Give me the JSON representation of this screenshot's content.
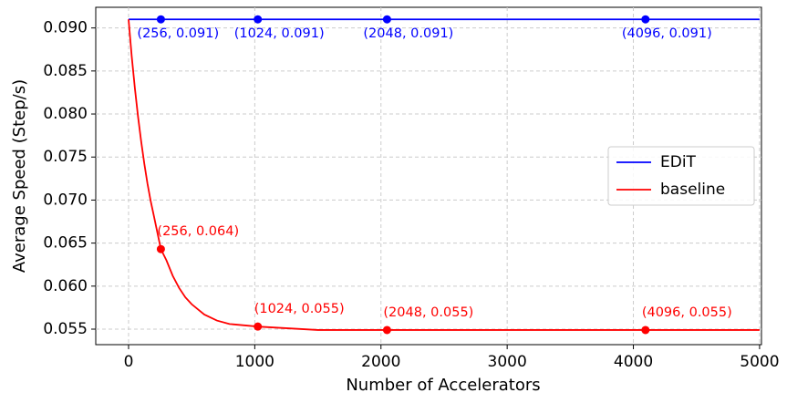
{
  "chart_data": {
    "type": "line",
    "xlabel": "Number of Accelerators",
    "ylabel": "Average Speed (Step/s)",
    "xlim": [
      -260,
      5015
    ],
    "ylim": [
      0.0532,
      0.0924
    ],
    "xticks": [
      0,
      1000,
      2000,
      3000,
      4000,
      5000
    ],
    "yticks": [
      {
        "value": 0.055,
        "label": "0.055"
      },
      {
        "value": 0.06,
        "label": "0.060"
      },
      {
        "value": 0.065,
        "label": "0.065"
      },
      {
        "value": 0.07,
        "label": "0.070"
      },
      {
        "value": 0.075,
        "label": "0.075"
      },
      {
        "value": 0.08,
        "label": "0.080"
      },
      {
        "value": 0.085,
        "label": "0.085"
      },
      {
        "value": 0.09,
        "label": "0.090"
      }
    ],
    "grid": true,
    "legend": "center right",
    "series": [
      {
        "name": "EDiT",
        "color": "#0000ff",
        "x": [
          0,
          5000
        ],
        "values": [
          0.091,
          0.091
        ],
        "markers": {
          "x": [
            256,
            1024,
            2048,
            4096
          ],
          "values": [
            0.091,
            0.091,
            0.091,
            0.091
          ],
          "value_labels": [
            "(256, 0.091)",
            "(1024, 0.091)",
            "(2048, 0.091)",
            "(4096, 0.091)"
          ]
        }
      },
      {
        "name": "baseline",
        "color": "#ff0000",
        "x": [
          0,
          25,
          50,
          75,
          100,
          125,
          150,
          175,
          200,
          256,
          300,
          350,
          400,
          450,
          500,
          600,
          700,
          800,
          1024,
          1500,
          2048,
          3000,
          4096,
          5000
        ],
        "values": [
          0.091,
          0.0867,
          0.083,
          0.0797,
          0.0768,
          0.0742,
          0.0719,
          0.0699,
          0.0682,
          0.0643,
          0.063,
          0.0612,
          0.0598,
          0.0587,
          0.0579,
          0.0567,
          0.056,
          0.0556,
          0.0553,
          0.0549,
          0.0549,
          0.0549,
          0.0549,
          0.0549
        ],
        "markers": {
          "x": [
            256,
            1024,
            2048,
            4096
          ],
          "values": [
            0.0643,
            0.0553,
            0.0549,
            0.0549
          ],
          "value_labels": [
            "(256, 0.064)",
            "(1024, 0.055)",
            "(2048, 0.055)",
            "(4096, 0.055)"
          ]
        }
      }
    ]
  }
}
